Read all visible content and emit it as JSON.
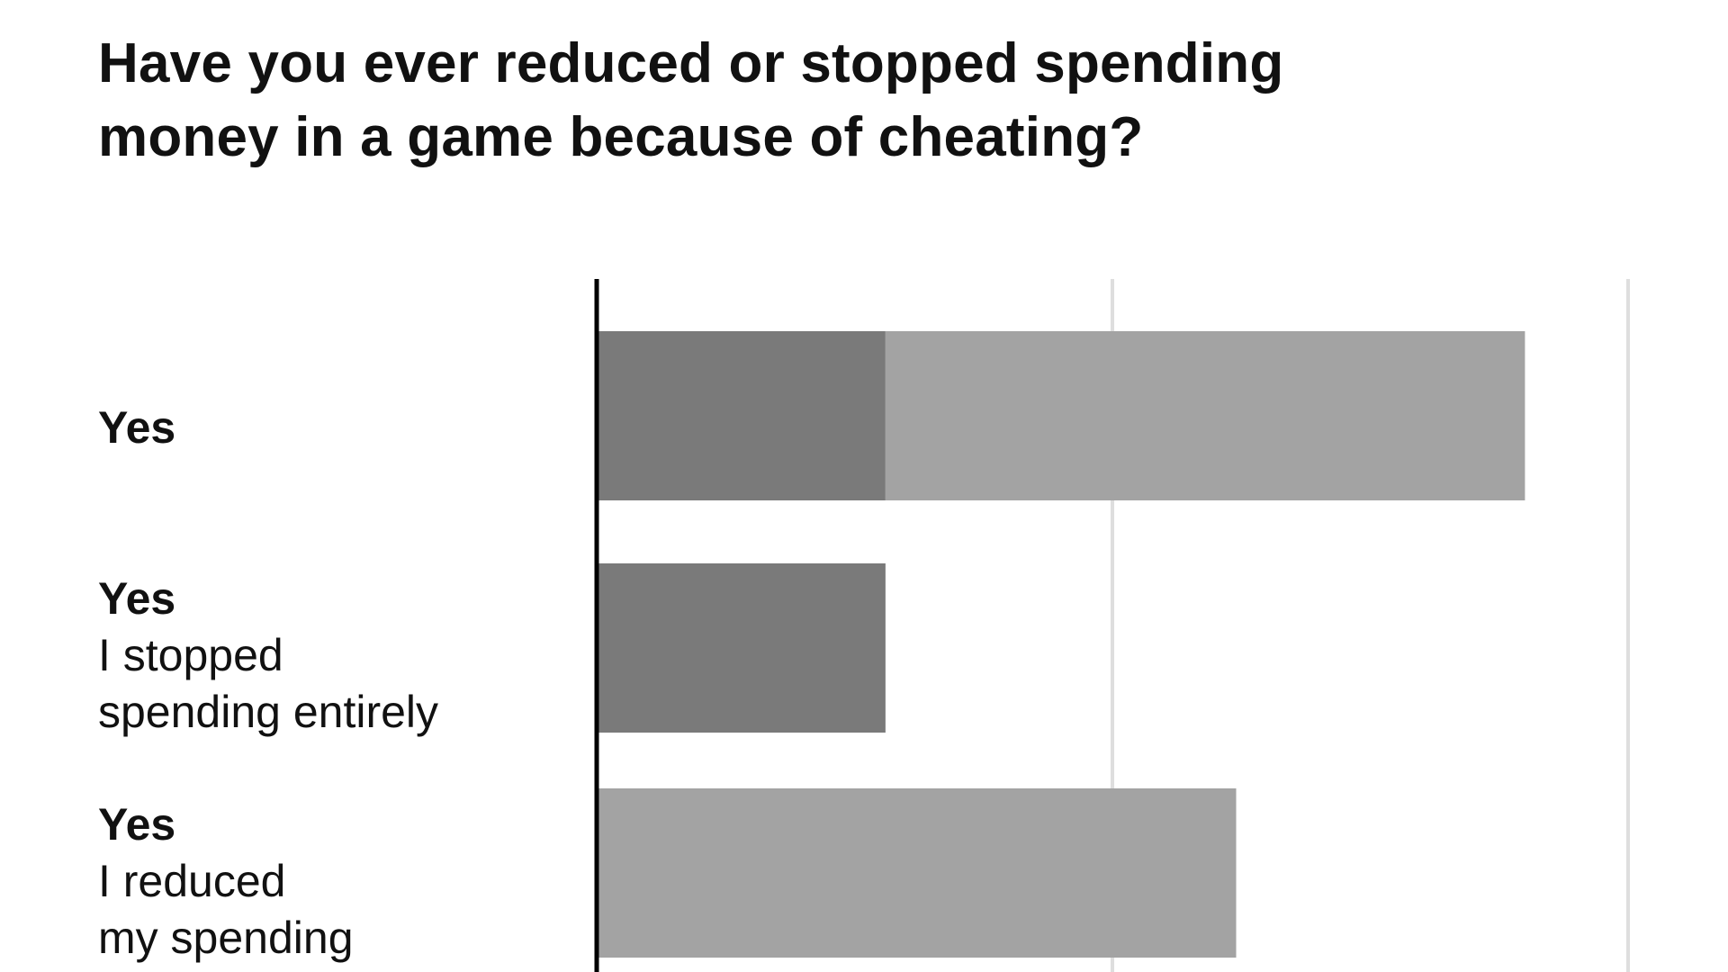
{
  "chart_data": {
    "type": "bar",
    "orientation": "horizontal",
    "stacked": true,
    "title_lines": [
      "Have you ever reduced or stopped spending",
      "money in a game because of cheating?"
    ],
    "categories": [
      {
        "lead": "Yes",
        "detail_lines": []
      },
      {
        "lead": "Yes",
        "detail_lines": [
          "I stopped",
          "spending entirely"
        ]
      },
      {
        "lead": "Yes",
        "detail_lines": [
          "I reduced",
          "my spending"
        ]
      }
    ],
    "series": [
      {
        "values": [
          28,
          28,
          0
        ],
        "color": "#7a7a7a"
      },
      {
        "values": [
          62,
          0,
          62
        ],
        "color": "#a3a3a3"
      }
    ],
    "xlim": [
      0,
      100
    ],
    "gridlines": [
      50,
      100
    ],
    "grid": true,
    "axis_color": "#000000",
    "grid_color": "#dedede"
  }
}
